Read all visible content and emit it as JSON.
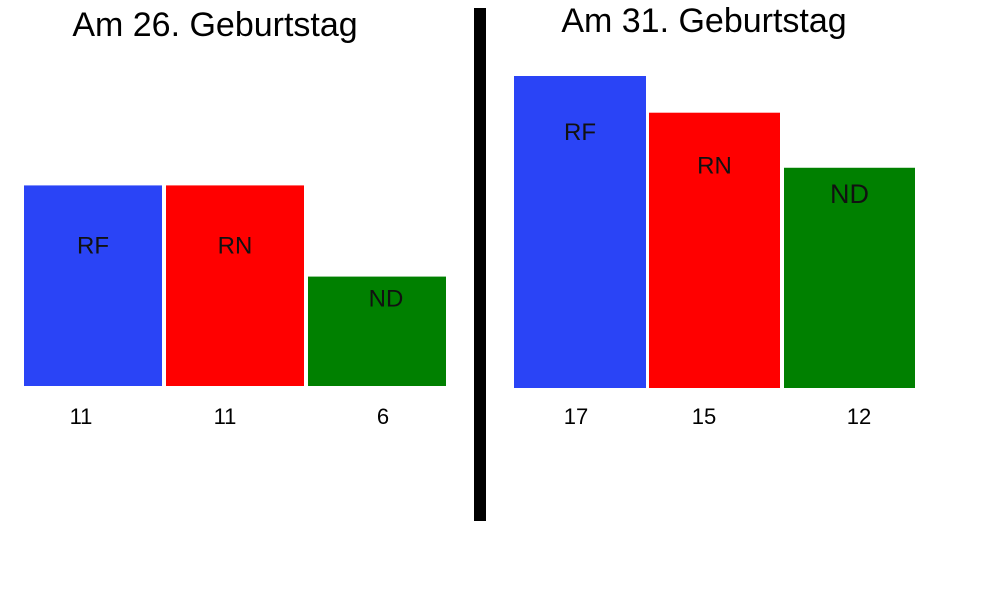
{
  "colors": {
    "RF": "#2a44f6",
    "RN": "#ff0000",
    "ND": "#008000",
    "divider": "#000000",
    "background": "#ffffff"
  },
  "chart_data": [
    {
      "type": "bar",
      "title": "Am 26. Geburtstag",
      "categories": [
        "RF",
        "RN",
        "ND"
      ],
      "values": [
        11,
        11,
        6
      ],
      "value_labels": [
        "11",
        "11",
        "6"
      ],
      "ylim": [
        0,
        17
      ],
      "grid": false
    },
    {
      "type": "bar",
      "title": "Am 31. Geburtstag",
      "categories": [
        "RF",
        "RN",
        "ND"
      ],
      "values": [
        17,
        15,
        12
      ],
      "value_labels": [
        "17",
        "15",
        "12"
      ],
      "ylim": [
        0,
        17
      ],
      "grid": false
    }
  ]
}
